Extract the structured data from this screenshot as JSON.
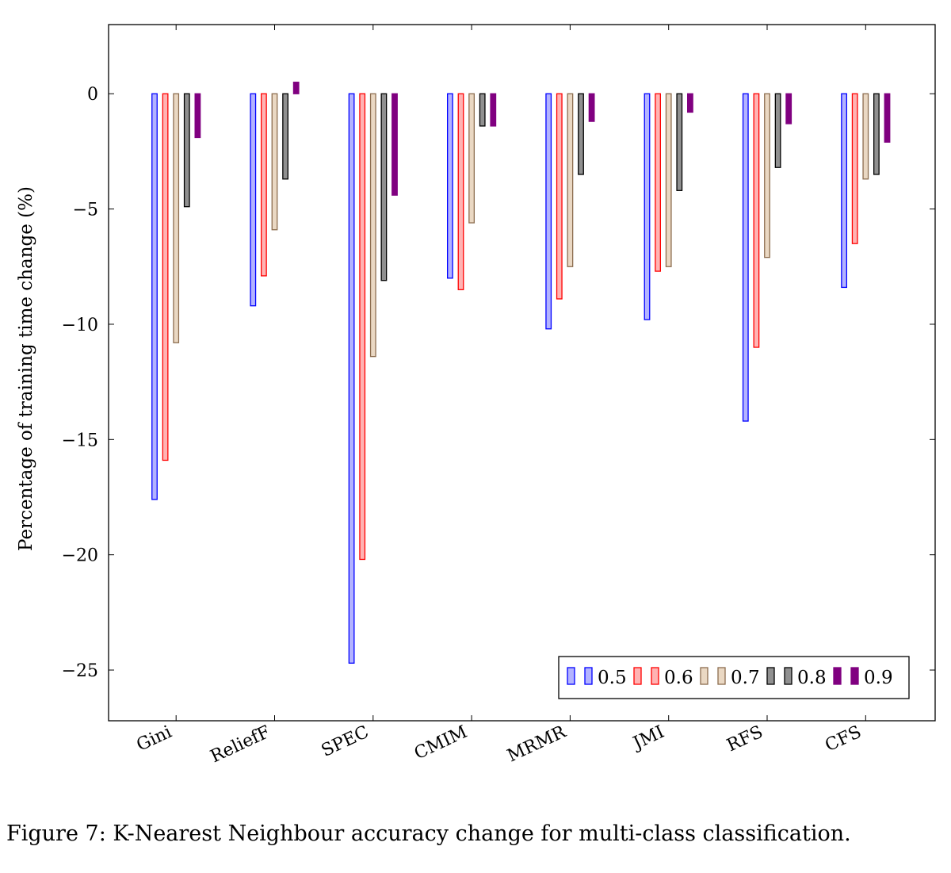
{
  "caption": "Figure 7: K-Nearest Neighbour accuracy change for multi-class classification.",
  "chart_data": {
    "type": "bar",
    "title": "",
    "xlabel": "",
    "ylabel": "Percentage of training time change (%)",
    "ylim": [
      -27.2,
      3
    ],
    "yticks": [
      0,
      -5,
      -10,
      -15,
      -20,
      -25
    ],
    "grid": false,
    "legend_position": "bottom-right",
    "categories": [
      "Gini",
      "ReliefF",
      "SPEC",
      "CMIM",
      "MRMR",
      "JMI",
      "RFS",
      "CFS"
    ],
    "series": [
      {
        "name": "0.5",
        "fill": "#b3b3ff",
        "stroke": "#0000ff",
        "values": [
          -17.6,
          -9.2,
          -24.7,
          -8.0,
          -10.2,
          -9.8,
          -14.2,
          -8.4
        ]
      },
      {
        "name": "0.6",
        "fill": "#ffb3b3",
        "stroke": "#ff0000",
        "values": [
          -15.9,
          -7.9,
          -20.2,
          -8.5,
          -8.9,
          -7.7,
          -11.0,
          -6.5
        ]
      },
      {
        "name": "0.7",
        "fill": "#ead8c3",
        "stroke": "#8c6d4f",
        "values": [
          -10.8,
          -5.9,
          -11.4,
          -5.6,
          -7.5,
          -7.5,
          -7.1,
          -3.7
        ]
      },
      {
        "name": "0.8",
        "fill": "#909090",
        "stroke": "#000000",
        "values": [
          -4.9,
          -3.7,
          -8.1,
          -1.4,
          -3.5,
          -4.2,
          -3.2,
          -3.5
        ]
      },
      {
        "name": "0.9",
        "fill": "#800080",
        "stroke": "#800080",
        "values": [
          -1.9,
          0.5,
          -4.4,
          -1.4,
          -1.2,
          -0.8,
          -1.3,
          -2.1
        ]
      }
    ]
  }
}
